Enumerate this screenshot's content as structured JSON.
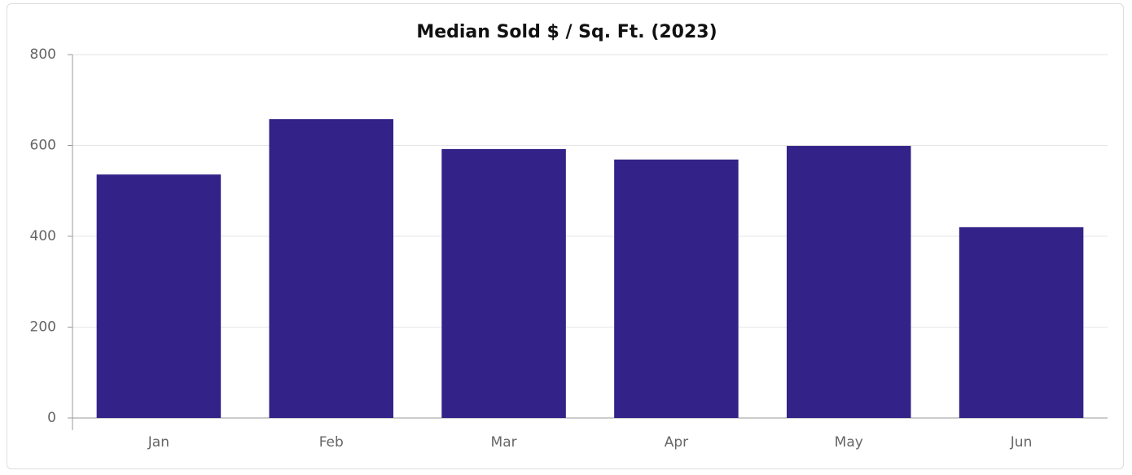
{
  "chart_data": {
    "type": "bar",
    "title": "Median Sold $ / Sq. Ft. (2023)",
    "categories": [
      "Jan",
      "Feb",
      "Mar",
      "Apr",
      "May",
      "Jun"
    ],
    "values": [
      536,
      658,
      592,
      569,
      599,
      420
    ],
    "color": "#332288",
    "ylim": [
      0,
      800
    ],
    "yticks": [
      0,
      200,
      400,
      600,
      800
    ],
    "grid": true
  }
}
